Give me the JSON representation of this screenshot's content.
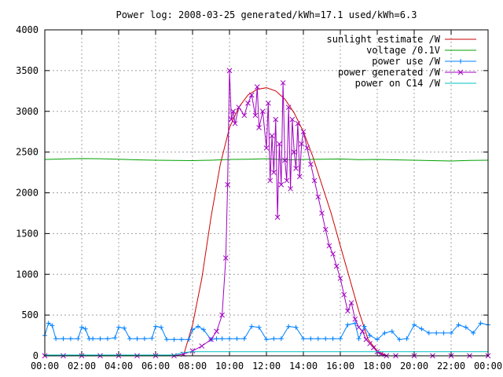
{
  "chart_data": {
    "type": "line",
    "title": "Power log: 2008-03-25 generated/kWh=17.1 used/kWh=6.3",
    "xlabel": "",
    "ylabel": "",
    "xlim": [
      0,
      24
    ],
    "ylim": [
      0,
      4000
    ],
    "x_ticks": [
      "00:00",
      "02:00",
      "04:00",
      "06:00",
      "08:00",
      "10:00",
      "12:00",
      "14:00",
      "16:00",
      "18:00",
      "20:00",
      "22:00",
      "00:00"
    ],
    "y_ticks": [
      0,
      500,
      1000,
      1500,
      2000,
      2500,
      3000,
      3500,
      4000
    ],
    "grid": true,
    "legend_position": "top-right",
    "series": [
      {
        "name": "sunlight estimate /W",
        "color": "#cc0000",
        "marker": "none",
        "x": [
          7.5,
          8.0,
          8.5,
          9.0,
          9.5,
          10.0,
          10.5,
          11.0,
          11.5,
          12.0,
          12.5,
          13.0,
          13.5,
          14.0,
          14.5,
          15.0,
          15.5,
          16.0,
          16.5,
          17.0,
          17.5,
          18.0,
          18.5
        ],
        "y": [
          0,
          380,
          950,
          1700,
          2350,
          2800,
          3050,
          3200,
          3270,
          3290,
          3250,
          3150,
          2980,
          2750,
          2450,
          2100,
          1750,
          1350,
          950,
          550,
          200,
          60,
          0
        ]
      },
      {
        "name": "voltage /0.1V",
        "color": "#00a000",
        "marker": "none",
        "x": [
          0,
          1,
          2,
          3,
          4,
          5,
          6,
          7,
          8,
          9,
          10,
          11,
          12,
          13,
          14,
          15,
          16,
          17,
          18,
          19,
          20,
          21,
          22,
          23,
          24
        ],
        "y": [
          2410,
          2415,
          2420,
          2418,
          2412,
          2405,
          2400,
          2398,
          2395,
          2400,
          2410,
          2412,
          2418,
          2405,
          2410,
          2412,
          2415,
          2408,
          2410,
          2405,
          2400,
          2395,
          2390,
          2398,
          2400
        ]
      },
      {
        "name": "power use /W",
        "color": "#0080ff",
        "marker": "plus",
        "x": [
          0,
          0.2,
          0.4,
          0.6,
          1.0,
          1.4,
          1.8,
          2.0,
          2.2,
          2.4,
          2.6,
          3.0,
          3.4,
          3.8,
          4.0,
          4.3,
          4.6,
          5.0,
          5.4,
          5.8,
          6.0,
          6.3,
          6.6,
          7.0,
          7.4,
          7.8,
          8.0,
          8.3,
          8.6,
          9.0,
          9.3,
          9.6,
          10.0,
          10.4,
          10.8,
          11.2,
          11.6,
          12.0,
          12.4,
          12.8,
          13.2,
          13.6,
          14.0,
          14.4,
          14.8,
          15.2,
          15.6,
          16.0,
          16.4,
          16.8,
          17.0,
          17.3,
          17.6,
          18.0,
          18.4,
          18.8,
          19.2,
          19.6,
          20.0,
          20.4,
          20.8,
          21.2,
          21.6,
          22.0,
          22.4,
          22.8,
          23.2,
          23.6,
          24.0
        ],
        "y": [
          250,
          400,
          370,
          210,
          210,
          210,
          210,
          350,
          330,
          210,
          210,
          210,
          210,
          220,
          350,
          340,
          210,
          210,
          210,
          215,
          360,
          350,
          200,
          200,
          200,
          200,
          320,
          360,
          320,
          200,
          210,
          210,
          210,
          210,
          210,
          360,
          350,
          200,
          210,
          210,
          360,
          350,
          210,
          210,
          210,
          210,
          210,
          210,
          380,
          400,
          210,
          360,
          250,
          200,
          280,
          300,
          200,
          210,
          380,
          330,
          280,
          280,
          280,
          280,
          380,
          350,
          280,
          400,
          380
        ]
      },
      {
        "name": "power generated /W",
        "color": "#a000c0",
        "marker": "x",
        "x": [
          0,
          1,
          2,
          3,
          4,
          5,
          6,
          7,
          7.5,
          8.0,
          8.5,
          9.0,
          9.3,
          9.6,
          9.8,
          9.9,
          10.0,
          10.1,
          10.2,
          10.3,
          10.5,
          10.8,
          11.0,
          11.2,
          11.4,
          11.5,
          11.6,
          11.8,
          12.0,
          12.1,
          12.2,
          12.3,
          12.4,
          12.5,
          12.6,
          12.7,
          12.8,
          12.9,
          13.0,
          13.1,
          13.2,
          13.3,
          13.4,
          13.5,
          13.6,
          13.7,
          13.8,
          13.9,
          14.0,
          14.2,
          14.4,
          14.6,
          14.8,
          15.0,
          15.2,
          15.4,
          15.6,
          15.8,
          16.0,
          16.2,
          16.4,
          16.6,
          16.8,
          17.0,
          17.2,
          17.4,
          17.6,
          17.8,
          18.0,
          18.2,
          18.5,
          19,
          20,
          21,
          22,
          23,
          24
        ],
        "y": [
          0,
          0,
          0,
          0,
          0,
          0,
          0,
          0,
          20,
          60,
          120,
          200,
          300,
          500,
          1200,
          2100,
          3500,
          2900,
          3000,
          2850,
          3050,
          2950,
          3100,
          3200,
          2950,
          3300,
          2800,
          3000,
          2550,
          3100,
          2150,
          2700,
          2250,
          2900,
          1700,
          2600,
          2100,
          3350,
          2400,
          2150,
          3050,
          2050,
          2900,
          2500,
          2300,
          2850,
          2200,
          2600,
          2750,
          2550,
          2350,
          2150,
          1950,
          1750,
          1550,
          1350,
          1250,
          1100,
          950,
          750,
          550,
          650,
          450,
          350,
          300,
          200,
          150,
          100,
          50,
          20,
          0,
          0,
          0,
          0,
          0,
          0,
          0
        ]
      },
      {
        "name": "power on C14 /W",
        "color": "#00c0c0",
        "marker": "none",
        "x": [
          0,
          2,
          4,
          6,
          7.0,
          7.5,
          8.0,
          10,
          12,
          14,
          16,
          18,
          20,
          22,
          24
        ],
        "y": [
          10,
          10,
          10,
          10,
          10,
          40,
          50,
          50,
          50,
          50,
          50,
          50,
          50,
          50,
          50
        ]
      }
    ]
  }
}
